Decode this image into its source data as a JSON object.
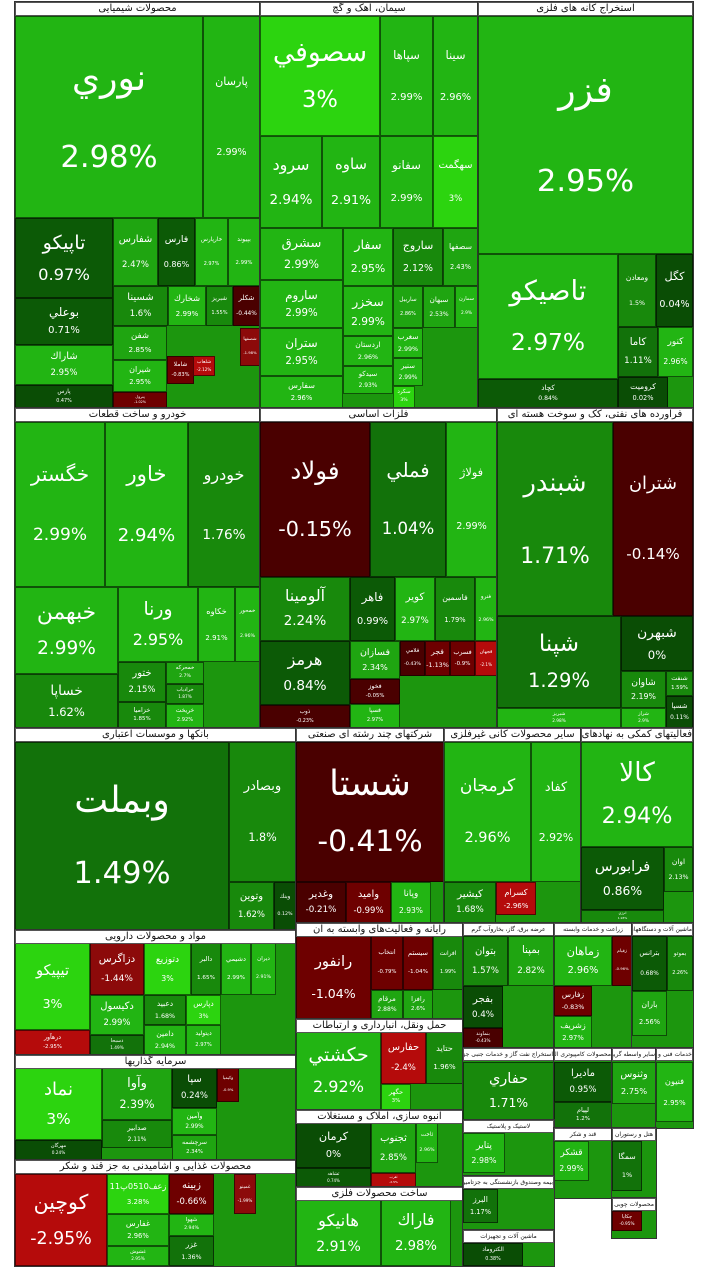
{
  "sectors": [
    {
      "title": "محصولات شیمیایی",
      "tiles": [
        {
          "symbol": "نوري",
          "change": "2.98%"
        },
        {
          "symbol": "پارسان",
          "change": "2.99%"
        },
        {
          "symbol": "تاپيكو",
          "change": "0.97%"
        },
        {
          "symbol": "بوعلي",
          "change": "0.71%"
        },
        {
          "symbol": "شاراك",
          "change": "2.95%"
        },
        {
          "symbol": "پارس",
          "change": "0.47%"
        },
        {
          "symbol": "شفارس",
          "change": "2.47%"
        },
        {
          "symbol": "فارس",
          "change": "0.86%"
        },
        {
          "symbol": "خارپارس",
          "change": "2.97%"
        },
        {
          "symbol": "بپيوند",
          "change": "2.99%"
        },
        {
          "symbol": "شسينا",
          "change": "1.6%"
        },
        {
          "symbol": "شخارك",
          "change": "2.99%"
        },
        {
          "symbol": "شبريز",
          "change": "1.55%"
        },
        {
          "symbol": "شكلر",
          "change": "-0.44%"
        },
        {
          "symbol": "شفن",
          "change": "2.85%"
        },
        {
          "symbol": "شيران",
          "change": "2.95%"
        },
        {
          "symbol": "پترول",
          "change": "-1.02%"
        },
        {
          "symbol": "شاملا",
          "change": "-0.83%"
        },
        {
          "symbol": "شلعاب",
          "change": "-2.12%"
        },
        {
          "symbol": "شصفها",
          "change": "-1.98%"
        }
      ]
    },
    {
      "title": "سیمان، آهک و گچ",
      "tiles": [
        {
          "symbol": "سصوفي",
          "change": "3%"
        },
        {
          "symbol": "سپاها",
          "change": "2.99%"
        },
        {
          "symbol": "سينا",
          "change": "2.96%"
        },
        {
          "symbol": "سرود",
          "change": "2.94%"
        },
        {
          "symbol": "ساوه",
          "change": "2.91%"
        },
        {
          "symbol": "سفانو",
          "change": "2.99%"
        },
        {
          "symbol": "سهگمت",
          "change": "3%"
        },
        {
          "symbol": "سشرق",
          "change": "2.99%"
        },
        {
          "symbol": "ساروم",
          "change": "2.99%"
        },
        {
          "symbol": "ستران",
          "change": "2.95%"
        },
        {
          "symbol": "سفارس",
          "change": "2.96%"
        },
        {
          "symbol": "سفار",
          "change": "2.95%"
        },
        {
          "symbol": "ساروج",
          "change": "2.12%"
        },
        {
          "symbol": "سصفها",
          "change": "2.43%"
        },
        {
          "symbol": "سخزر",
          "change": "2.99%"
        },
        {
          "symbol": "اردستان",
          "change": "2.96%"
        },
        {
          "symbol": "سيدكو",
          "change": "2.93%"
        },
        {
          "symbol": "ساربيل",
          "change": "2.86%"
        },
        {
          "symbol": "سبهان",
          "change": "2.53%"
        },
        {
          "symbol": "سمازن",
          "change": "2.9%"
        },
        {
          "symbol": "سغرب",
          "change": "2.99%"
        },
        {
          "symbol": "سنير",
          "change": "2.99%"
        },
        {
          "symbol": "سكرد",
          "change": "3%"
        }
      ]
    },
    {
      "title": "استخراج کانه های فلزی",
      "tiles": [
        {
          "symbol": "فزر",
          "change": "2.95%"
        },
        {
          "symbol": "تاصيكو",
          "change": "2.97%"
        },
        {
          "symbol": "كچاد",
          "change": "0.84%"
        },
        {
          "symbol": "ومعادن",
          "change": "1.5%"
        },
        {
          "symbol": "كگل",
          "change": "0.04%"
        },
        {
          "symbol": "كاما",
          "change": "1.11%"
        },
        {
          "symbol": "كنور",
          "change": "2.96%"
        },
        {
          "symbol": "كروميت",
          "change": "0.02%"
        }
      ]
    },
    {
      "title": "خودرو و ساخت قطعات",
      "tiles": [
        {
          "symbol": "خگستر",
          "change": "2.99%"
        },
        {
          "symbol": "خاور",
          "change": "2.94%"
        },
        {
          "symbol": "خودرو",
          "change": "1.76%"
        },
        {
          "symbol": "خبهمن",
          "change": "2.99%"
        },
        {
          "symbol": "خساپا",
          "change": "1.62%"
        },
        {
          "symbol": "ورنا",
          "change": "2.95%"
        },
        {
          "symbol": "خكاوه",
          "change": "2.91%"
        },
        {
          "symbol": "خمحور",
          "change": "2.96%"
        },
        {
          "symbol": "ختور",
          "change": "2.15%"
        },
        {
          "symbol": "خزاميا",
          "change": "1.85%"
        },
        {
          "symbol": "خمحركه",
          "change": "2.7%"
        },
        {
          "symbol": "خرادياب",
          "change": "1.87%"
        },
        {
          "symbol": "خريخت",
          "change": "2.92%"
        }
      ]
    },
    {
      "title": "فلزات اساسی",
      "tiles": [
        {
          "symbol": "فولاد",
          "change": "-0.15%"
        },
        {
          "symbol": "فملي",
          "change": "1.04%"
        },
        {
          "symbol": "فولاژ",
          "change": "2.99%"
        },
        {
          "symbol": "آلومينا",
          "change": "2.24%"
        },
        {
          "symbol": "هرمز",
          "change": "0.84%"
        },
        {
          "symbol": "ذوب",
          "change": "-0.23%"
        },
        {
          "symbol": "فاهر",
          "change": "0.99%"
        },
        {
          "symbol": "كوير",
          "change": "2.97%"
        },
        {
          "symbol": "فاسمين",
          "change": "1.79%"
        },
        {
          "symbol": "فنرو",
          "change": "2.96%"
        },
        {
          "symbol": "فسازان",
          "change": "2.34%"
        },
        {
          "symbol": "فخوز",
          "change": "-0.05%"
        },
        {
          "symbol": "فسپا",
          "change": "2.97%"
        },
        {
          "symbol": "فلامي",
          "change": "-0.43%"
        },
        {
          "symbol": "فجر",
          "change": "-1.13%"
        },
        {
          "symbol": "فسرب",
          "change": "-0.9%"
        },
        {
          "symbol": "فجهان",
          "change": "-2.1%"
        }
      ]
    },
    {
      "title": "فراورده های نفتی، کک و سوخت هسته ای",
      "tiles": [
        {
          "symbol": "شبندر",
          "change": "1.71%"
        },
        {
          "symbol": "شتران",
          "change": "-0.14%"
        },
        {
          "symbol": "شپنا",
          "change": "1.29%"
        },
        {
          "symbol": "شبريز",
          "change": "2.98%"
        },
        {
          "symbol": "شبهرن",
          "change": "0%"
        },
        {
          "symbol": "شاوان",
          "change": "2.19%"
        },
        {
          "symbol": "شنفت",
          "change": "1.59%"
        },
        {
          "symbol": "شراز",
          "change": "2.9%"
        },
        {
          "symbol": "شسپا",
          "change": "0.11%"
        }
      ]
    },
    {
      "title": "بانکها و موسسات اعتباری",
      "tiles": [
        {
          "symbol": "وبملت",
          "change": "1.49%"
        },
        {
          "symbol": "وبصادر",
          "change": "1.8%"
        },
        {
          "symbol": "وتوين",
          "change": "1.62%"
        },
        {
          "symbol": "وبنك",
          "change": "0.12%"
        }
      ]
    },
    {
      "title": "شرکتهای چند رشته ای صنعتی",
      "tiles": [
        {
          "symbol": "شستا",
          "change": "-0.41%"
        },
        {
          "symbol": "وغدير",
          "change": "-0.21%"
        },
        {
          "symbol": "واميد",
          "change": "-0.99%"
        },
        {
          "symbol": "وپانا",
          "change": "2.93%"
        }
      ]
    },
    {
      "title": "سایر محصولات کانی غیرفلزی",
      "tiles": [
        {
          "symbol": "كرمجان",
          "change": "2.96%"
        },
        {
          "symbol": "كفاد",
          "change": "2.92%"
        },
        {
          "symbol": "كيشير",
          "change": "1.68%"
        },
        {
          "symbol": "كسرام",
          "change": "-2.96%"
        }
      ]
    },
    {
      "title": "فعالیتهای کمکی به نهادهای مالی واسط",
      "tiles": [
        {
          "symbol": "كالا",
          "change": "2.94%"
        },
        {
          "symbol": "فرابورس",
          "change": "0.86%"
        },
        {
          "symbol": "انرژي",
          "change": "1.93%"
        },
        {
          "symbol": "اوان",
          "change": "2.13%"
        }
      ]
    },
    {
      "title": "مواد و محصولات دارویی",
      "tiles": [
        {
          "symbol": "تيپيكو",
          "change": "3%"
        },
        {
          "symbol": "درهآور",
          "change": "-2.95%"
        },
        {
          "symbol": "دزاگرس",
          "change": "-1.44%"
        },
        {
          "symbol": "دتوزيع",
          "change": "3%"
        },
        {
          "symbol": "دالبر",
          "change": "1.65%"
        },
        {
          "symbol": "دشيمي",
          "change": "2.99%"
        },
        {
          "symbol": "ديران",
          "change": "2.91%"
        },
        {
          "symbol": "دكيسول",
          "change": "2.99%"
        },
        {
          "symbol": "دعبيد",
          "change": "1.68%"
        },
        {
          "symbol": "دامين",
          "change": "2.94%"
        },
        {
          "symbol": "دپارس",
          "change": "3%"
        },
        {
          "symbol": "ديتوليد",
          "change": "2.97%"
        },
        {
          "symbol": "دسبحا",
          "change": "1.49%"
        }
      ]
    },
    {
      "title": "سرمایه گذاریها",
      "tiles": [
        {
          "symbol": "نماد",
          "change": "3%"
        },
        {
          "symbol": "مهرگان",
          "change": "0.24%"
        },
        {
          "symbol": "وآوا",
          "change": "2.39%"
        },
        {
          "symbol": "صدابير",
          "change": "2.11%"
        },
        {
          "symbol": "سپا",
          "change": "0.24%"
        },
        {
          "symbol": "وآمين",
          "change": "2.99%"
        },
        {
          "symbol": "سرچشمه",
          "change": "2.34%"
        },
        {
          "symbol": "وكيميا",
          "change": "-0.9%"
        }
      ]
    },
    {
      "title": "محصولات غذایی و آشامیدنی به جز قند و شکر",
      "tiles": [
        {
          "symbol": "كوچين",
          "change": "-2.95%"
        },
        {
          "symbol": "زعف0510پ11",
          "change": "3.28%"
        },
        {
          "symbol": "غفارس",
          "change": "2.96%"
        },
        {
          "symbol": "غشوش",
          "change": "2.95%"
        },
        {
          "symbol": "زبينه",
          "change": "-0.66%"
        },
        {
          "symbol": "شهوا",
          "change": "2.94%"
        },
        {
          "symbol": "غزر",
          "change": "1.36%"
        },
        {
          "symbol": "غمينو",
          "change": "-1.99%"
        }
      ]
    },
    {
      "title": "رایانه و فعالیت‌های وابسته به آن",
      "tiles": [
        {
          "symbol": "رانفور",
          "change": "-1.04%"
        },
        {
          "symbol": "انتخاب",
          "change": "-0.79%"
        },
        {
          "symbol": "سيستم",
          "change": "-1.04%"
        },
        {
          "symbol": "افرانت",
          "change": "1.99%"
        },
        {
          "symbol": "مرقام",
          "change": "2.88%"
        },
        {
          "symbol": "رافزا",
          "change": "2.6%"
        }
      ]
    },
    {
      "title": "حمل ونقل، انبارداری و ارتباطات",
      "tiles": [
        {
          "symbol": "حكشتي",
          "change": "2.92%"
        },
        {
          "symbol": "حفارس",
          "change": "-2.4%"
        },
        {
          "symbol": "حگهر",
          "change": "3%"
        },
        {
          "symbol": "حتايد",
          "change": "1.96%"
        }
      ]
    },
    {
      "title": "انبوه سازی، املاک و مستغلات",
      "tiles": [
        {
          "symbol": "كرمان",
          "change": "0%"
        },
        {
          "symbol": "ثشاهد",
          "change": "0.74%"
        },
        {
          "symbol": "ثجنوب",
          "change": "2.85%"
        },
        {
          "symbol": "ثغرب",
          "change": "-2.5%"
        },
        {
          "symbol": "ثاخت",
          "change": "2.96%"
        }
      ]
    },
    {
      "title": "ساخت محصولات فلزی",
      "tiles": [
        {
          "symbol": "هانيكو",
          "change": "2.91%"
        },
        {
          "symbol": "فاراك",
          "change": "2.98%"
        }
      ]
    },
    {
      "title": "عرضه برق، گاز، بخاروآب گرم",
      "tiles": [
        {
          "symbol": "بتوان",
          "change": "1.57%"
        },
        {
          "symbol": "بمپنا",
          "change": "2.82%"
        },
        {
          "symbol": "بفجر",
          "change": "0.4%"
        },
        {
          "symbol": "بنماوند",
          "change": "-0.43%"
        }
      ]
    },
    {
      "title": "زراعت و خدمات وابسته",
      "tiles": [
        {
          "symbol": "زماهان",
          "change": "2.96%"
        },
        {
          "symbol": "زقيام",
          "change": "-0.96%"
        },
        {
          "symbol": "زفارس",
          "change": "-0.83%"
        },
        {
          "symbol": "زشريف",
          "change": "2.97%"
        }
      ]
    },
    {
      "title": "ماشین آلات و دستگاههای برقی",
      "tiles": [
        {
          "symbol": "بترانس",
          "change": "0.68%"
        },
        {
          "symbol": "بموتو",
          "change": "2.26%"
        },
        {
          "symbol": "باران",
          "change": "2.56%"
        }
      ]
    },
    {
      "title": "استخراج نفت گاز و خدمات جنبی جز اکتشاف",
      "tiles": [
        {
          "symbol": "حفاري",
          "change": "1.71%"
        }
      ]
    },
    {
      "title": "محصولات کامپیوتری الکترونیکی",
      "tiles": [
        {
          "symbol": "ماديرا",
          "change": "0.95%"
        },
        {
          "symbol": "لپيام",
          "change": "1.2%"
        }
      ]
    },
    {
      "title": "سایر واسطه گریهای مالی",
      "tiles": [
        {
          "symbol": "وثنوس",
          "change": "2.75%"
        }
      ]
    },
    {
      "title": "خدمات فنی و مهندسی",
      "tiles": [
        {
          "symbol": "فنيون",
          "change": "2.95%"
        }
      ]
    },
    {
      "title": "لاستیک و پلاستیک",
      "tiles": [
        {
          "symbol": "پتاير",
          "change": "2.98%"
        }
      ]
    },
    {
      "title": "قند و شکر",
      "tiles": [
        {
          "symbol": "قشكر",
          "change": "2.99%"
        }
      ]
    },
    {
      "title": "هتل و رستوران",
      "tiles": [
        {
          "symbol": "سمگا",
          "change": "1%"
        }
      ]
    },
    {
      "title": "بیمه وصندوق بازنشستگی به جزتامین اجتماعی",
      "tiles": [
        {
          "symbol": "البرز",
          "change": "1.17%"
        }
      ]
    },
    {
      "title": "ماشین آلات و تجهیزات",
      "tiles": [
        {
          "symbol": "الكتروماد",
          "change": "0.38%"
        }
      ]
    },
    {
      "title": "محصولات چوبی",
      "tiles": [
        {
          "symbol": "چكاپا",
          "change": "-0.95%"
        }
      ]
    }
  ]
}
